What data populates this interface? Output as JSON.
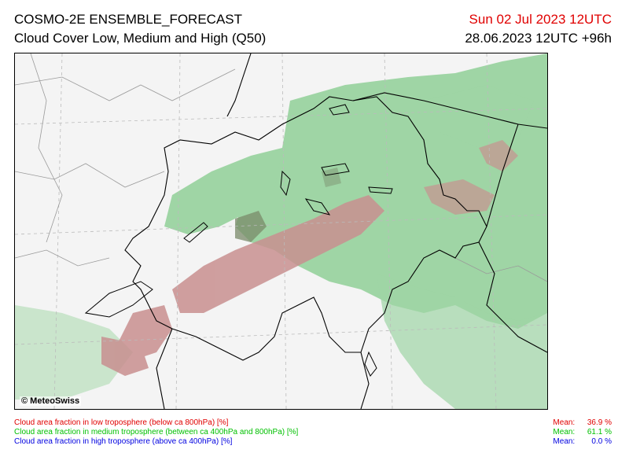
{
  "header": {
    "title": "COSMO-2E ENSEMBLE_FORECAST",
    "subtitle": "Cloud Cover Low, Medium and High (Q50)",
    "valid_time": "Sun 02 Jul 2023 12UTC",
    "run_time": "28.06.2023 12UTC +96h"
  },
  "map": {
    "copyright": "© MeteoSwiss",
    "colors": {
      "low": "#c88f8f",
      "medium": "#8fcf96",
      "high": "#0000e0",
      "mixed": "#7a8a6a",
      "background": "#f4f4f4"
    }
  },
  "legend": [
    {
      "text": "Cloud area fraction in low troposphere (below ca 800hPa) [%]",
      "mean_label": "Mean:",
      "mean_value": "36.9 %",
      "color": "#e00000"
    },
    {
      "text": "Cloud area fraction in medium troposphere (between ca 400hPa and 800hPa) [%]",
      "mean_label": "Mean:",
      "mean_value": "61.1 %",
      "color": "#00c000"
    },
    {
      "text": "Cloud area fraction in high troposphere (above ca 400hPa) [%]",
      "mean_label": "Mean:",
      "mean_value": "0.0 %",
      "color": "#0000e0"
    }
  ]
}
